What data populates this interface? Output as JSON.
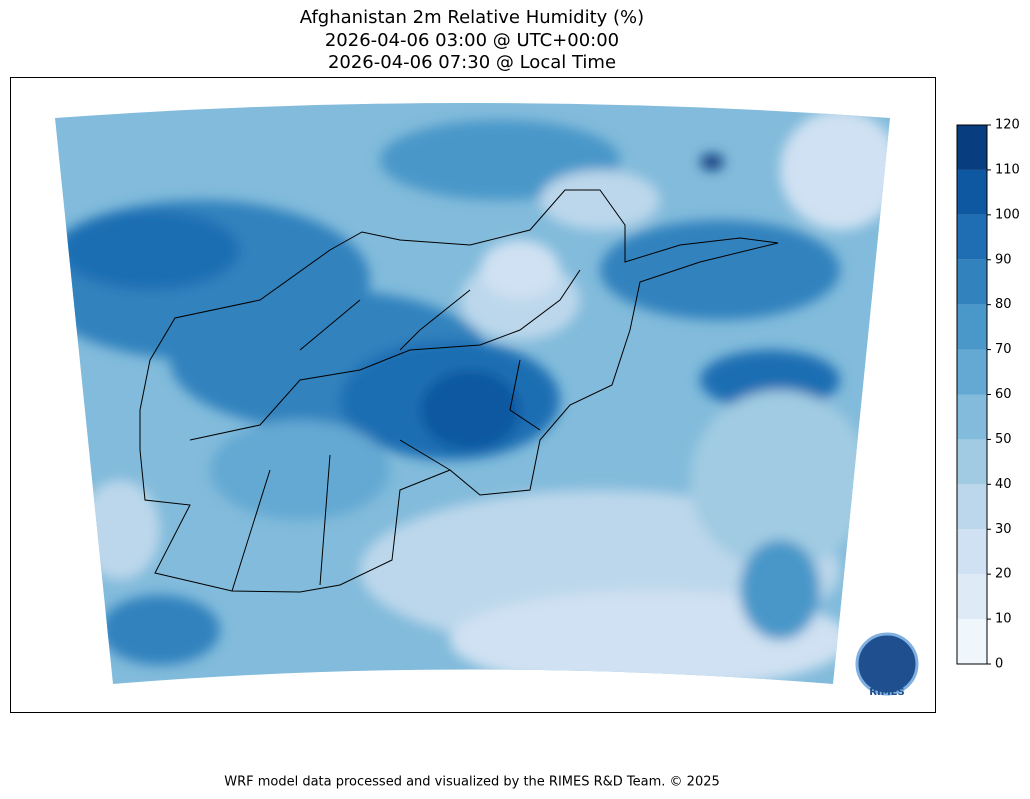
{
  "title": [
    "Afghanistan 2m Relative Humidity (%)",
    "2026-04-06 03:00 @ UTC+00:00",
    "2026-04-06 07:30 @ Local Time"
  ],
  "colorbar": {
    "ticks": [
      0,
      10,
      20,
      30,
      40,
      50,
      60,
      70,
      80,
      90,
      100,
      110,
      120
    ],
    "colors": [
      "#eff6fc",
      "#deebf7",
      "#cfe1f2",
      "#bcd7eb",
      "#a0cbe2",
      "#82bbdb",
      "#64a9d3",
      "#4a97c9",
      "#3282be",
      "#1f6eb3",
      "#0d58a1",
      "#083d7f"
    ]
  },
  "logo_text": "RIMES",
  "credit": "WRF model data processed and visualized by the RIMES R&D Team. © 2025"
}
